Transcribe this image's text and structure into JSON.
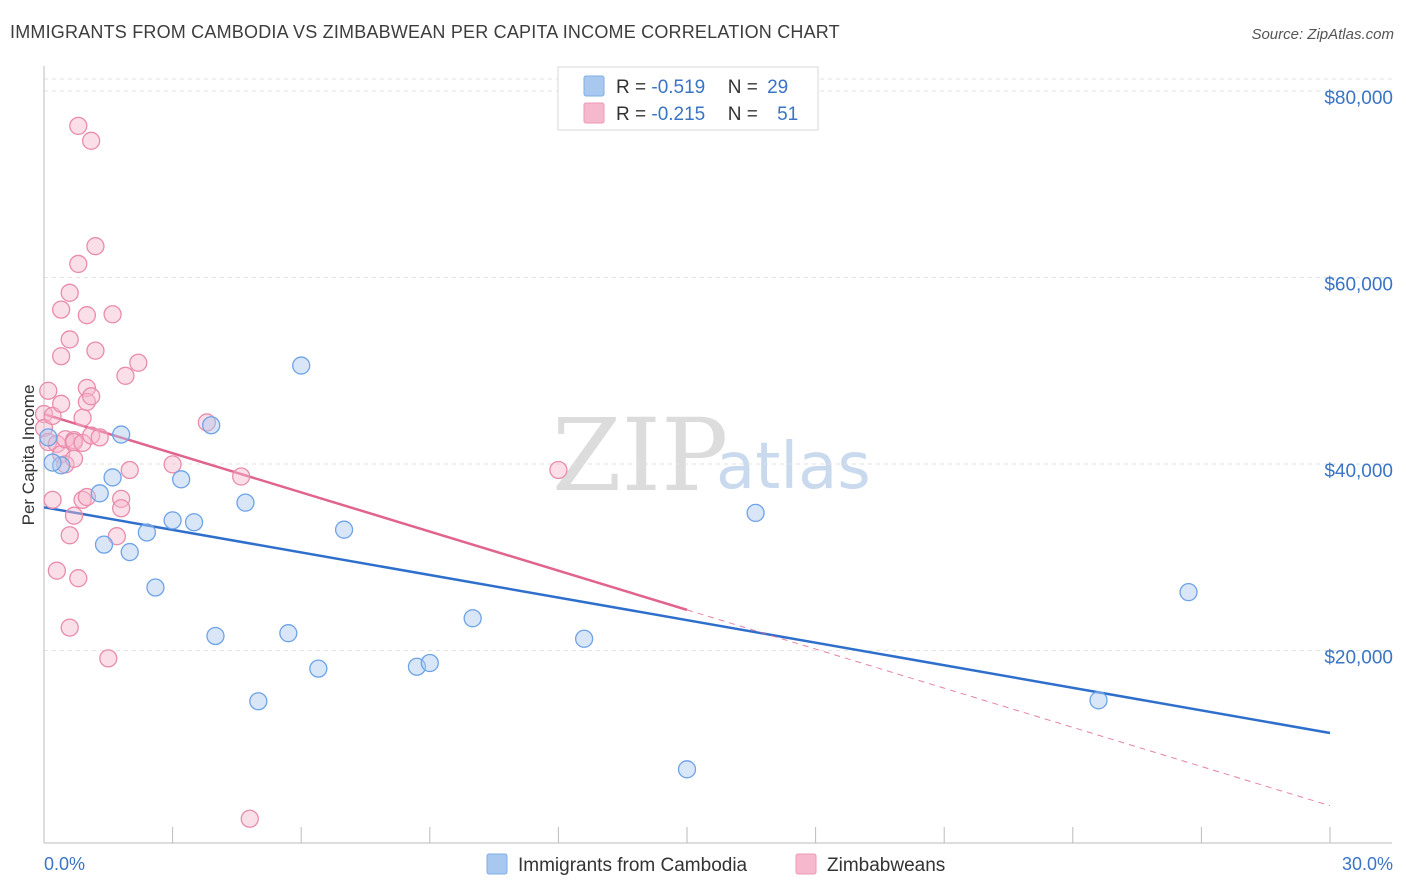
{
  "title": "IMMIGRANTS FROM CAMBODIA VS ZIMBABWEAN PER CAPITA INCOME CORRELATION CHART",
  "source": "Source: ZipAtlas.com",
  "watermark": {
    "zip": "ZIP",
    "atlas": "atlas"
  },
  "legend": {
    "rows": [
      {
        "r_label": "R = ",
        "r_value": "-0.519",
        "n_label": "N = ",
        "n_value": "29",
        "color": "#a9c8f0"
      },
      {
        "r_label": "R = ",
        "r_value": "-0.215",
        "n_label": "N = ",
        "n_value": "51",
        "color": "#f6b8cc"
      }
    ]
  },
  "bottom_legend": [
    {
      "label": "Immigrants from Cambodia",
      "color": "#a9c8f0"
    },
    {
      "label": "Zimbabweans",
      "color": "#f6b8cc"
    }
  ],
  "chart_data": {
    "type": "scatter",
    "title": "IMMIGRANTS FROM CAMBODIA VS ZIMBABWEAN PER CAPITA INCOME CORRELATION CHART",
    "xlabel": "",
    "ylabel": "Per Capita Income",
    "xlim": [
      0,
      30
    ],
    "ylim": [
      0,
      83000
    ],
    "x_tick_labels": [
      "0.0%",
      "30.0%"
    ],
    "y_ticks": [
      20000,
      40000,
      60000,
      80000
    ],
    "y_tick_labels": [
      "$20,000",
      "$40,000",
      "$60,000",
      "$80,000"
    ],
    "grid": true,
    "series": [
      {
        "name": "Immigrants from Cambodia",
        "color": "#6ea3e6",
        "fill": "#a9c8f0",
        "points": [
          [
            0.1,
            43500
          ],
          [
            0.4,
            40500
          ],
          [
            1.3,
            37500
          ],
          [
            1.4,
            32000
          ],
          [
            1.6,
            39200
          ],
          [
            1.8,
            43800
          ],
          [
            2.0,
            31200
          ],
          [
            2.4,
            33300
          ],
          [
            2.6,
            27400
          ],
          [
            3.0,
            34600
          ],
          [
            3.2,
            39000
          ],
          [
            3.5,
            34400
          ],
          [
            3.9,
            44800
          ],
          [
            4.0,
            22200
          ],
          [
            4.7,
            36500
          ],
          [
            5.0,
            15200
          ],
          [
            5.7,
            22500
          ],
          [
            6.0,
            51200
          ],
          [
            6.4,
            18700
          ],
          [
            7.0,
            33600
          ],
          [
            8.7,
            18900
          ],
          [
            9.0,
            19300
          ],
          [
            10.0,
            24100
          ],
          [
            12.6,
            21900
          ],
          [
            15.0,
            7900
          ],
          [
            16.6,
            35400
          ],
          [
            24.6,
            15300
          ],
          [
            26.7,
            26900
          ],
          [
            0.2,
            40800
          ]
        ],
        "trend": {
          "x": [
            0,
            30
          ],
          "y": [
            36000,
            11800
          ],
          "color": "#2f6fcc"
        }
      },
      {
        "name": "Zimbabweans",
        "color": "#e98cab",
        "fill": "#f6b8cc",
        "points": [
          [
            0.0,
            46000
          ],
          [
            0.0,
            44500
          ],
          [
            0.1,
            43000
          ],
          [
            0.1,
            48500
          ],
          [
            0.2,
            45800
          ],
          [
            0.2,
            36800
          ],
          [
            0.3,
            29200
          ],
          [
            0.3,
            42800
          ],
          [
            0.4,
            57200
          ],
          [
            0.4,
            52200
          ],
          [
            0.4,
            41700
          ],
          [
            0.4,
            47100
          ],
          [
            0.5,
            43300
          ],
          [
            0.5,
            40600
          ],
          [
            0.6,
            59000
          ],
          [
            0.6,
            54000
          ],
          [
            0.6,
            33000
          ],
          [
            0.6,
            23100
          ],
          [
            0.7,
            35100
          ],
          [
            0.7,
            43200
          ],
          [
            0.7,
            41200
          ],
          [
            0.7,
            43000
          ],
          [
            0.8,
            62100
          ],
          [
            0.8,
            28400
          ],
          [
            0.8,
            76900
          ],
          [
            0.9,
            42900
          ],
          [
            0.9,
            45600
          ],
          [
            0.9,
            36800
          ],
          [
            1.0,
            56600
          ],
          [
            1.0,
            48800
          ],
          [
            1.0,
            47300
          ],
          [
            1.0,
            37100
          ],
          [
            1.1,
            75300
          ],
          [
            1.1,
            47900
          ],
          [
            1.1,
            43700
          ],
          [
            1.2,
            64000
          ],
          [
            1.2,
            52800
          ],
          [
            1.3,
            43500
          ],
          [
            1.5,
            19800
          ],
          [
            1.6,
            56700
          ],
          [
            1.7,
            32900
          ],
          [
            1.8,
            36900
          ],
          [
            1.8,
            35900
          ],
          [
            1.9,
            50100
          ],
          [
            2.0,
            40000
          ],
          [
            2.2,
            51500
          ],
          [
            3.0,
            40600
          ],
          [
            3.8,
            45100
          ],
          [
            4.6,
            39300
          ],
          [
            4.8,
            2600
          ],
          [
            12.0,
            40000
          ]
        ],
        "trend": {
          "x": [
            0,
            15
          ],
          "y": [
            46000,
            25000
          ],
          "color": "#e0648c"
        },
        "trend_extension": {
          "x": [
            15,
            30
          ],
          "y": [
            25000,
            4000
          ],
          "style": "dashed"
        }
      }
    ]
  }
}
